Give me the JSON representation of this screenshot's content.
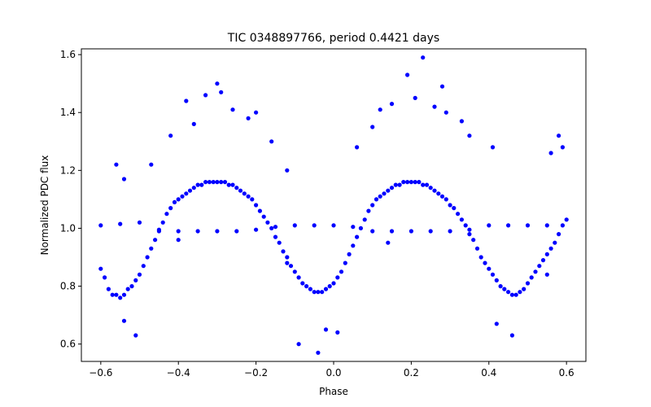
{
  "chart_data": {
    "type": "scatter",
    "title": "TIC 0348897766, period 0.4421 days",
    "xlabel": "Phase",
    "ylabel": "Normalized PDC flux",
    "xlim": [
      -0.65,
      0.65
    ],
    "ylim": [
      0.54,
      1.62
    ],
    "xticks": [
      -0.6,
      -0.4,
      -0.2,
      0.0,
      0.2,
      0.4,
      0.6
    ],
    "xtick_labels": [
      "−0.6",
      "−0.4",
      "−0.2",
      "0.0",
      "0.2",
      "0.4",
      "0.6"
    ],
    "yticks": [
      0.6,
      0.8,
      1.0,
      1.2,
      1.4,
      1.6
    ],
    "ytick_labels": [
      "0.6",
      "0.8",
      "1.0",
      "1.2",
      "1.4",
      "1.6"
    ],
    "grid": false,
    "marker_color": "#0000ff",
    "series": [
      {
        "points": [
          [
            -0.6,
            0.86
          ],
          [
            -0.59,
            0.83
          ],
          [
            -0.58,
            0.79
          ],
          [
            -0.57,
            0.77
          ],
          [
            -0.56,
            0.77
          ],
          [
            -0.55,
            0.76
          ],
          [
            -0.54,
            0.77
          ],
          [
            -0.53,
            0.79
          ],
          [
            -0.52,
            0.8
          ],
          [
            -0.51,
            0.82
          ],
          [
            -0.5,
            0.84
          ],
          [
            -0.49,
            0.87
          ],
          [
            -0.48,
            0.9
          ],
          [
            -0.47,
            0.93
          ],
          [
            -0.46,
            0.96
          ],
          [
            -0.45,
            0.99
          ],
          [
            -0.44,
            1.02
          ],
          [
            -0.43,
            1.05
          ],
          [
            -0.42,
            1.07
          ],
          [
            -0.41,
            1.09
          ],
          [
            -0.4,
            1.1
          ],
          [
            -0.39,
            1.11
          ],
          [
            -0.38,
            1.12
          ],
          [
            -0.37,
            1.13
          ],
          [
            -0.36,
            1.14
          ],
          [
            -0.35,
            1.15
          ],
          [
            -0.34,
            1.15
          ],
          [
            -0.33,
            1.16
          ],
          [
            -0.32,
            1.16
          ],
          [
            -0.31,
            1.16
          ],
          [
            -0.3,
            1.16
          ],
          [
            -0.29,
            1.16
          ],
          [
            -0.28,
            1.16
          ],
          [
            -0.27,
            1.15
          ],
          [
            -0.26,
            1.15
          ],
          [
            -0.25,
            1.14
          ],
          [
            -0.24,
            1.13
          ],
          [
            -0.23,
            1.12
          ],
          [
            -0.22,
            1.11
          ],
          [
            -0.21,
            1.1
          ],
          [
            -0.2,
            1.08
          ],
          [
            -0.19,
            1.06
          ],
          [
            -0.18,
            1.04
          ],
          [
            -0.17,
            1.02
          ],
          [
            -0.16,
            1.0
          ],
          [
            -0.15,
            0.97
          ],
          [
            -0.14,
            0.95
          ],
          [
            -0.13,
            0.92
          ],
          [
            -0.12,
            0.9
          ],
          [
            -0.11,
            0.87
          ],
          [
            -0.1,
            0.85
          ],
          [
            -0.09,
            0.83
          ],
          [
            -0.08,
            0.81
          ],
          [
            -0.07,
            0.8
          ],
          [
            -0.06,
            0.79
          ],
          [
            -0.05,
            0.78
          ],
          [
            -0.04,
            0.78
          ],
          [
            -0.03,
            0.78
          ],
          [
            -0.02,
            0.79
          ],
          [
            -0.01,
            0.8
          ],
          [
            0.0,
            0.81
          ],
          [
            0.01,
            0.83
          ],
          [
            0.02,
            0.85
          ],
          [
            0.03,
            0.88
          ],
          [
            0.04,
            0.91
          ],
          [
            0.05,
            0.94
          ],
          [
            0.06,
            0.97
          ],
          [
            0.07,
            1.0
          ],
          [
            0.08,
            1.03
          ],
          [
            0.09,
            1.06
          ],
          [
            0.1,
            1.08
          ],
          [
            0.11,
            1.1
          ],
          [
            0.12,
            1.11
          ],
          [
            0.13,
            1.12
          ],
          [
            0.14,
            1.13
          ],
          [
            0.15,
            1.14
          ],
          [
            0.16,
            1.15
          ],
          [
            0.17,
            1.15
          ],
          [
            0.18,
            1.16
          ],
          [
            0.19,
            1.16
          ],
          [
            0.2,
            1.16
          ],
          [
            0.21,
            1.16
          ],
          [
            0.22,
            1.16
          ],
          [
            0.23,
            1.15
          ],
          [
            0.24,
            1.15
          ],
          [
            0.25,
            1.14
          ],
          [
            0.26,
            1.13
          ],
          [
            0.27,
            1.12
          ],
          [
            0.28,
            1.11
          ],
          [
            0.29,
            1.1
          ],
          [
            0.3,
            1.08
          ],
          [
            0.31,
            1.07
          ],
          [
            0.32,
            1.05
          ],
          [
            0.33,
            1.03
          ],
          [
            0.34,
            1.01
          ],
          [
            0.35,
            0.98
          ],
          [
            0.36,
            0.96
          ],
          [
            0.37,
            0.93
          ],
          [
            0.38,
            0.9
          ],
          [
            0.39,
            0.88
          ],
          [
            0.4,
            0.86
          ],
          [
            0.41,
            0.84
          ],
          [
            0.42,
            0.82
          ],
          [
            0.43,
            0.8
          ],
          [
            0.44,
            0.79
          ],
          [
            0.45,
            0.78
          ],
          [
            0.46,
            0.77
          ],
          [
            0.47,
            0.77
          ],
          [
            0.48,
            0.78
          ],
          [
            0.49,
            0.79
          ],
          [
            0.5,
            0.81
          ],
          [
            0.51,
            0.83
          ],
          [
            0.52,
            0.85
          ],
          [
            0.53,
            0.87
          ],
          [
            0.54,
            0.89
          ],
          [
            0.55,
            0.91
          ],
          [
            0.56,
            0.93
          ],
          [
            0.57,
            0.95
          ],
          [
            0.58,
            0.98
          ],
          [
            0.59,
            1.01
          ],
          [
            0.6,
            1.03
          ],
          [
            -0.6,
            1.01
          ],
          [
            -0.55,
            1.015
          ],
          [
            -0.5,
            1.02
          ],
          [
            -0.45,
            0.995
          ],
          [
            -0.4,
            0.99
          ],
          [
            -0.35,
            0.99
          ],
          [
            -0.3,
            0.99
          ],
          [
            -0.25,
            0.99
          ],
          [
            -0.2,
            0.995
          ],
          [
            -0.15,
            1.005
          ],
          [
            -0.1,
            1.01
          ],
          [
            -0.05,
            1.01
          ],
          [
            0.0,
            1.01
          ],
          [
            0.05,
            1.005
          ],
          [
            0.1,
            0.99
          ],
          [
            0.15,
            0.99
          ],
          [
            0.2,
            0.99
          ],
          [
            0.25,
            0.99
          ],
          [
            0.3,
            0.99
          ],
          [
            0.35,
            0.995
          ],
          [
            0.4,
            1.01
          ],
          [
            0.45,
            1.01
          ],
          [
            0.5,
            1.01
          ],
          [
            0.55,
            1.01
          ],
          [
            -0.3,
            1.5
          ],
          [
            -0.33,
            1.46
          ],
          [
            -0.29,
            1.47
          ],
          [
            -0.26,
            1.41
          ],
          [
            -0.38,
            1.44
          ],
          [
            -0.22,
            1.38
          ],
          [
            -0.2,
            1.4
          ],
          [
            -0.36,
            1.36
          ],
          [
            -0.42,
            1.32
          ],
          [
            -0.16,
            1.3
          ],
          [
            0.19,
            1.53
          ],
          [
            0.23,
            1.59
          ],
          [
            0.28,
            1.49
          ],
          [
            0.15,
            1.43
          ],
          [
            0.21,
            1.45
          ],
          [
            0.26,
            1.42
          ],
          [
            0.12,
            1.41
          ],
          [
            0.29,
            1.4
          ],
          [
            0.33,
            1.37
          ],
          [
            0.1,
            1.35
          ],
          [
            0.35,
            1.32
          ],
          [
            0.41,
            1.28
          ],
          [
            0.56,
            1.26
          ],
          [
            0.58,
            1.32
          ],
          [
            0.59,
            1.28
          ],
          [
            -0.56,
            1.22
          ],
          [
            -0.54,
            1.17
          ],
          [
            -0.47,
            1.22
          ],
          [
            -0.12,
            1.2
          ],
          [
            0.06,
            1.28
          ],
          [
            -0.09,
            0.6
          ],
          [
            -0.04,
            0.57
          ],
          [
            -0.02,
            0.65
          ],
          [
            0.01,
            0.64
          ],
          [
            -0.51,
            0.63
          ],
          [
            0.46,
            0.63
          ],
          [
            0.42,
            0.67
          ],
          [
            -0.54,
            0.68
          ],
          [
            0.14,
            0.95
          ],
          [
            -0.12,
            0.88
          ],
          [
            -0.4,
            0.96
          ],
          [
            0.55,
            0.84
          ]
        ]
      }
    ]
  }
}
